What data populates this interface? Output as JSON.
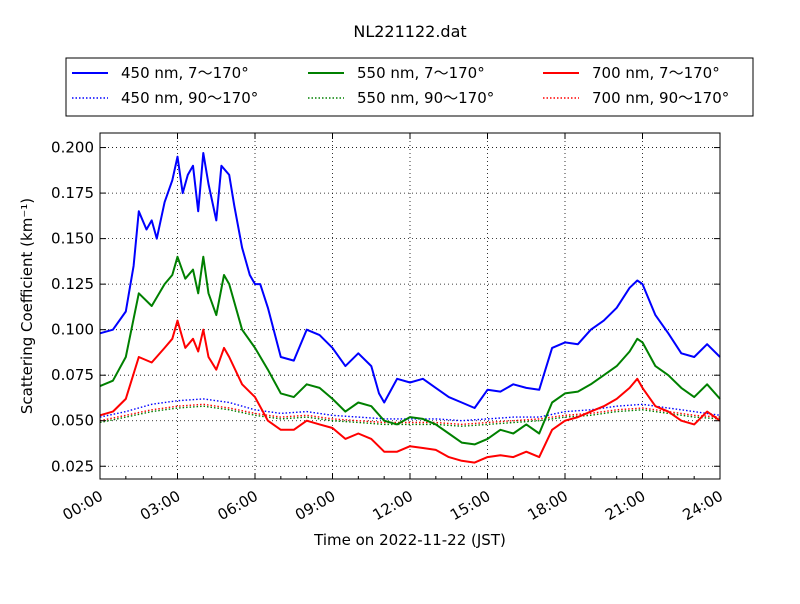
{
  "chart_data": {
    "type": "line",
    "title": "NL221122.dat",
    "xlabel": "Time on 2022-11-22 (JST)",
    "ylabel": "Scattering Coefficient (km⁻¹)",
    "xlim": [
      0,
      24
    ],
    "ylim": [
      0.018,
      0.208
    ],
    "x_ticks": [
      0,
      3,
      6,
      9,
      12,
      15,
      18,
      21,
      24
    ],
    "x_tick_labels": [
      "00:00",
      "03:00",
      "06:00",
      "09:00",
      "12:00",
      "15:00",
      "18:00",
      "21:00",
      "24:00"
    ],
    "y_ticks": [
      0.025,
      0.05,
      0.075,
      0.1,
      0.125,
      0.15,
      0.175,
      0.2
    ],
    "y_tick_labels": [
      "0.025",
      "0.050",
      "0.075",
      "0.100",
      "0.125",
      "0.150",
      "0.175",
      "0.200"
    ],
    "grid": true,
    "legend_position": "top, above plot",
    "series": [
      {
        "name": "450 nm, 7～170°",
        "color": "#0000ff",
        "style": "solid",
        "x": [
          0,
          0.5,
          1,
          1.3,
          1.5,
          1.8,
          2.0,
          2.2,
          2.5,
          2.8,
          3.0,
          3.2,
          3.4,
          3.6,
          3.8,
          4.0,
          4.2,
          4.5,
          4.7,
          5.0,
          5.2,
          5.5,
          5.8,
          6.0,
          6.2,
          6.5,
          7.0,
          7.5,
          8.0,
          8.5,
          9.0,
          9.5,
          10.0,
          10.5,
          10.8,
          11.0,
          11.5,
          12.0,
          12.5,
          13.0,
          13.5,
          14.0,
          14.5,
          15.0,
          15.5,
          16.0,
          16.5,
          17.0,
          17.5,
          18.0,
          18.5,
          19.0,
          19.5,
          20.0,
          20.5,
          20.8,
          21.0,
          21.5,
          22.0,
          22.5,
          23.0,
          23.5,
          24.0
        ],
        "y": [
          0.098,
          0.1,
          0.11,
          0.135,
          0.165,
          0.155,
          0.16,
          0.15,
          0.17,
          0.182,
          0.195,
          0.175,
          0.185,
          0.19,
          0.165,
          0.197,
          0.18,
          0.16,
          0.19,
          0.185,
          0.168,
          0.145,
          0.13,
          0.125,
          0.125,
          0.112,
          0.085,
          0.083,
          0.1,
          0.097,
          0.09,
          0.08,
          0.087,
          0.08,
          0.065,
          0.06,
          0.073,
          0.071,
          0.073,
          0.068,
          0.063,
          0.06,
          0.057,
          0.067,
          0.066,
          0.07,
          0.068,
          0.067,
          0.09,
          0.093,
          0.092,
          0.1,
          0.105,
          0.112,
          0.123,
          0.127,
          0.125,
          0.108,
          0.098,
          0.087,
          0.085,
          0.092,
          0.085
        ]
      },
      {
        "name": "550 nm, 7～170°",
        "color": "#008000",
        "style": "solid",
        "x": [
          0,
          0.5,
          1,
          1.5,
          2.0,
          2.5,
          2.8,
          3.0,
          3.3,
          3.6,
          3.8,
          4.0,
          4.2,
          4.5,
          4.8,
          5.0,
          5.5,
          6.0,
          6.5,
          7.0,
          7.5,
          8.0,
          8.5,
          9.0,
          9.5,
          10.0,
          10.5,
          11.0,
          11.5,
          12.0,
          12.5,
          13.0,
          13.5,
          14.0,
          14.5,
          15.0,
          15.5,
          16.0,
          16.5,
          17.0,
          17.5,
          18.0,
          18.5,
          19.0,
          19.5,
          20.0,
          20.5,
          20.8,
          21.0,
          21.5,
          22.0,
          22.5,
          23.0,
          23.5,
          24.0
        ],
        "y": [
          0.069,
          0.072,
          0.085,
          0.12,
          0.113,
          0.125,
          0.13,
          0.14,
          0.128,
          0.133,
          0.12,
          0.14,
          0.12,
          0.108,
          0.13,
          0.125,
          0.1,
          0.09,
          0.078,
          0.065,
          0.063,
          0.07,
          0.068,
          0.062,
          0.055,
          0.06,
          0.058,
          0.05,
          0.048,
          0.052,
          0.051,
          0.048,
          0.043,
          0.038,
          0.037,
          0.04,
          0.045,
          0.043,
          0.048,
          0.043,
          0.06,
          0.065,
          0.066,
          0.07,
          0.075,
          0.08,
          0.088,
          0.095,
          0.093,
          0.08,
          0.075,
          0.068,
          0.063,
          0.07,
          0.062
        ]
      },
      {
        "name": "700 nm, 7～170°",
        "color": "#ff0000",
        "style": "solid",
        "x": [
          0,
          0.5,
          1,
          1.5,
          2.0,
          2.5,
          2.8,
          3.0,
          3.3,
          3.6,
          3.8,
          4.0,
          4.2,
          4.5,
          4.8,
          5.0,
          5.5,
          6.0,
          6.5,
          7.0,
          7.5,
          8.0,
          8.5,
          9.0,
          9.5,
          10.0,
          10.5,
          11.0,
          11.5,
          12.0,
          12.5,
          13.0,
          13.5,
          14.0,
          14.5,
          15.0,
          15.5,
          16.0,
          16.5,
          17.0,
          17.5,
          18.0,
          18.5,
          19.0,
          19.5,
          20.0,
          20.5,
          20.8,
          21.0,
          21.5,
          22.0,
          22.5,
          23.0,
          23.5,
          24.0
        ],
        "y": [
          0.053,
          0.055,
          0.062,
          0.085,
          0.082,
          0.09,
          0.095,
          0.105,
          0.09,
          0.095,
          0.088,
          0.1,
          0.085,
          0.078,
          0.09,
          0.085,
          0.07,
          0.063,
          0.05,
          0.045,
          0.045,
          0.05,
          0.048,
          0.046,
          0.04,
          0.043,
          0.04,
          0.033,
          0.033,
          0.036,
          0.035,
          0.034,
          0.03,
          0.028,
          0.027,
          0.03,
          0.031,
          0.03,
          0.033,
          0.03,
          0.045,
          0.05,
          0.052,
          0.055,
          0.058,
          0.062,
          0.068,
          0.073,
          0.068,
          0.058,
          0.055,
          0.05,
          0.048,
          0.055,
          0.05
        ]
      },
      {
        "name": "450 nm, 90～170°",
        "color": "#0000ff",
        "style": "dotted",
        "x": [
          0,
          1,
          2,
          3,
          4,
          5,
          6,
          7,
          8,
          9,
          10,
          11,
          12,
          13,
          14,
          15,
          16,
          17,
          18,
          19,
          20,
          21,
          22,
          23,
          24
        ],
        "y": [
          0.052,
          0.055,
          0.059,
          0.061,
          0.062,
          0.06,
          0.056,
          0.054,
          0.055,
          0.053,
          0.052,
          0.051,
          0.051,
          0.051,
          0.05,
          0.051,
          0.052,
          0.052,
          0.055,
          0.056,
          0.058,
          0.059,
          0.057,
          0.055,
          0.053
        ]
      },
      {
        "name": "550 nm, 90～170°",
        "color": "#008000",
        "style": "dotted",
        "x": [
          0,
          1,
          2,
          3,
          4,
          5,
          6,
          7,
          8,
          9,
          10,
          11,
          12,
          13,
          14,
          15,
          16,
          17,
          18,
          19,
          20,
          21,
          22,
          23,
          24
        ],
        "y": [
          0.049,
          0.052,
          0.055,
          0.057,
          0.058,
          0.056,
          0.053,
          0.051,
          0.052,
          0.05,
          0.049,
          0.048,
          0.048,
          0.048,
          0.047,
          0.048,
          0.049,
          0.05,
          0.052,
          0.053,
          0.055,
          0.056,
          0.054,
          0.052,
          0.051
        ]
      },
      {
        "name": "700 nm, 90～170°",
        "color": "#ff0000",
        "style": "dotted",
        "x": [
          0,
          1,
          2,
          3,
          4,
          5,
          6,
          7,
          8,
          9,
          10,
          11,
          12,
          13,
          14,
          15,
          16,
          17,
          18,
          19,
          20,
          21,
          22,
          23,
          24
        ],
        "y": [
          0.05,
          0.053,
          0.056,
          0.058,
          0.059,
          0.057,
          0.054,
          0.052,
          0.053,
          0.051,
          0.05,
          0.049,
          0.049,
          0.049,
          0.048,
          0.049,
          0.05,
          0.051,
          0.053,
          0.054,
          0.056,
          0.057,
          0.055,
          0.053,
          0.052
        ]
      }
    ]
  }
}
